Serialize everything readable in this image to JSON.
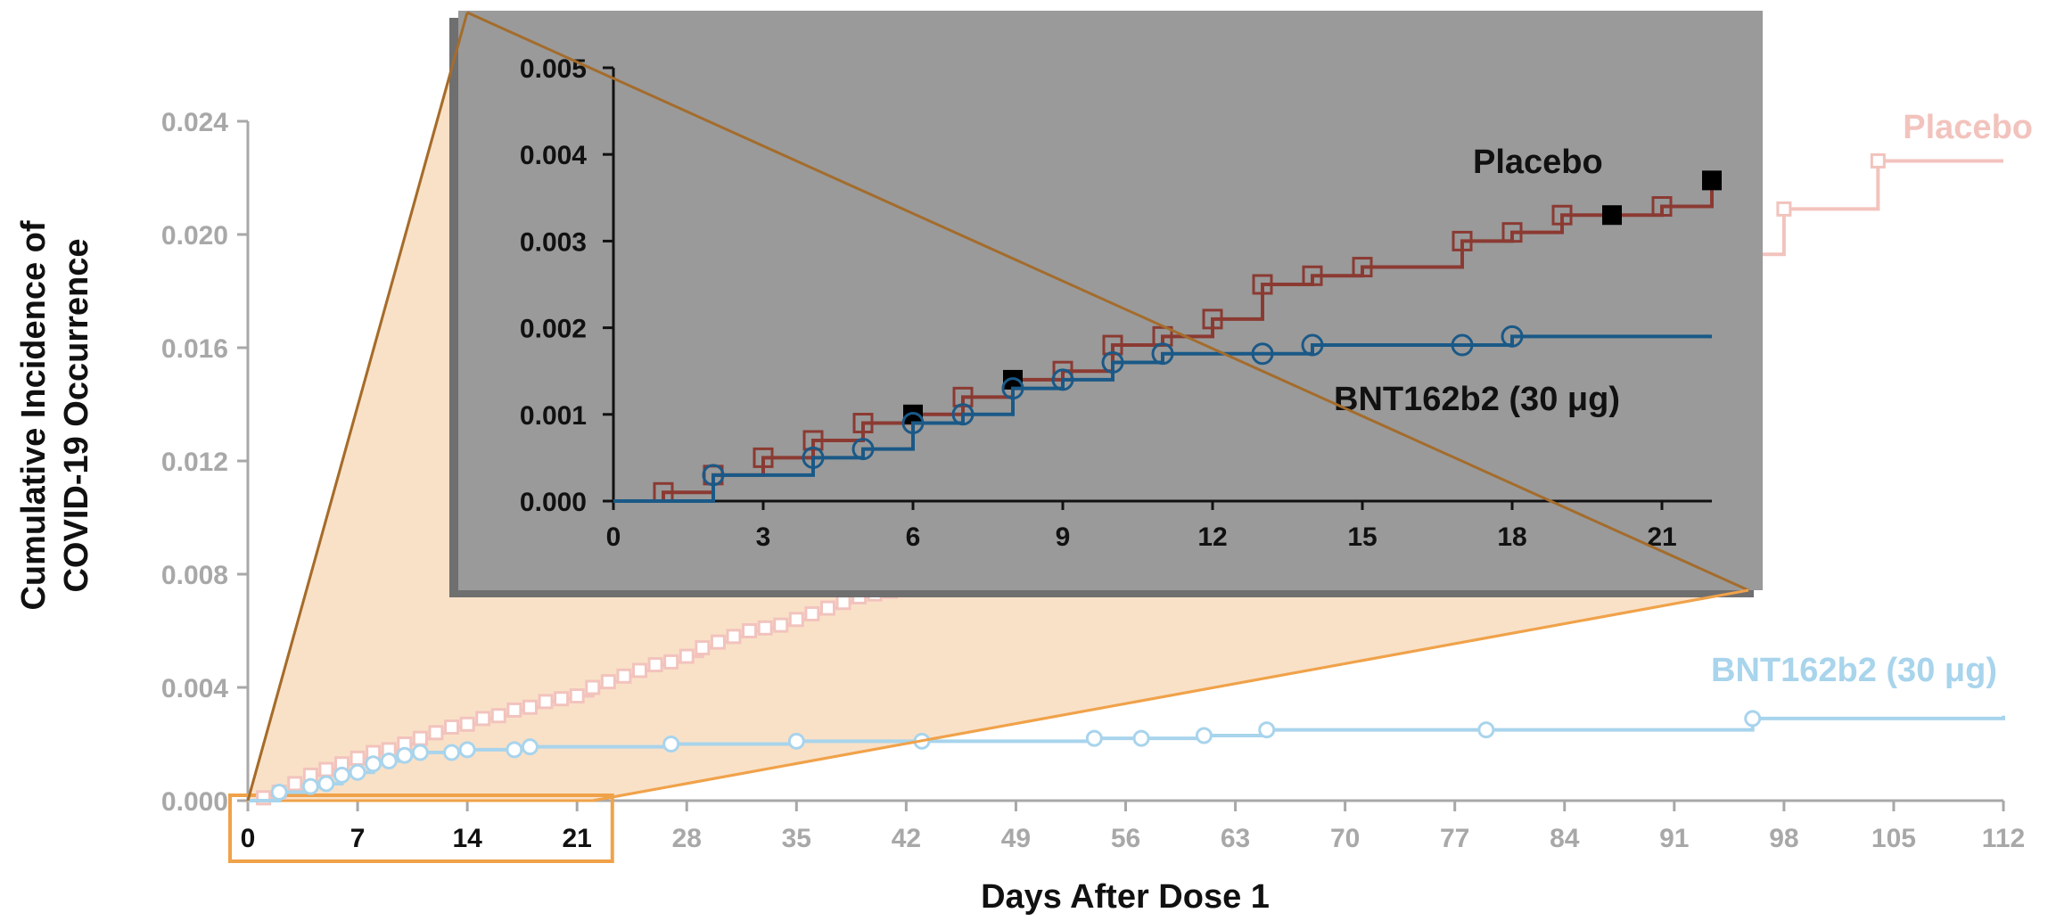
{
  "chart_data": [
    {
      "type": "line",
      "xlabel": "Days After Dose 1",
      "ylabel": "Cumulative Incidence of COVID-19 Occurrence",
      "xlim": [
        0,
        112
      ],
      "ylim": [
        0,
        0.024
      ],
      "x_ticks": [
        "0",
        "7",
        "14",
        "21",
        "28",
        "35",
        "42",
        "49",
        "56",
        "63",
        "70",
        "77",
        "84",
        "91",
        "98",
        "105",
        "112"
      ],
      "y_ticks": [
        "0.000",
        "0.004",
        "0.008",
        "0.012",
        "0.016",
        "0.020",
        "0.024"
      ],
      "highlighted_x_range": [
        0,
        22
      ],
      "series": [
        {
          "name": "Placebo",
          "color": "#f2c3bd",
          "marker": "open-square",
          "x": [
            0,
            1,
            2,
            3,
            4,
            5,
            6,
            7,
            8,
            9,
            10,
            11,
            12,
            13,
            14,
            15,
            16,
            17,
            18,
            19,
            20,
            21,
            22,
            23,
            24,
            25,
            26,
            27,
            28,
            29,
            30,
            31,
            32,
            33,
            34,
            35,
            36,
            37,
            38,
            39,
            40,
            41,
            42,
            96,
            98,
            104,
            112
          ],
          "values": [
            0.0,
            0.0001,
            0.0003,
            0.0006,
            0.0009,
            0.0011,
            0.0013,
            0.0015,
            0.0017,
            0.0018,
            0.002,
            0.0022,
            0.0024,
            0.0026,
            0.0027,
            0.0029,
            0.003,
            0.0032,
            0.0033,
            0.0035,
            0.0036,
            0.0037,
            0.004,
            0.0042,
            0.0044,
            0.0046,
            0.0048,
            0.0049,
            0.0051,
            0.0054,
            0.0056,
            0.0058,
            0.006,
            0.0061,
            0.0062,
            0.0064,
            0.0066,
            0.0068,
            0.007,
            0.0072,
            0.0073,
            0.0074,
            0.0075,
            0.0193,
            0.0209,
            0.0226,
            0.0226
          ]
        },
        {
          "name": "BNT162b2 (30 μg)",
          "color": "#a8d4ec",
          "marker": "open-circle",
          "x": [
            0,
            2,
            4,
            5,
            6,
            7,
            8,
            9,
            10,
            11,
            13,
            14,
            17,
            18,
            27,
            35,
            43,
            54,
            57,
            61,
            65,
            79,
            96,
            112
          ],
          "values": [
            0.0,
            0.0003,
            0.0005,
            0.0006,
            0.0009,
            0.001,
            0.0013,
            0.0014,
            0.0016,
            0.0017,
            0.0017,
            0.0018,
            0.0018,
            0.0019,
            0.002,
            0.0021,
            0.0021,
            0.0022,
            0.0022,
            0.0023,
            0.0025,
            0.0025,
            0.0029,
            0.003
          ]
        }
      ]
    },
    {
      "type": "line",
      "xlim": [
        0,
        22
      ],
      "ylim": [
        0,
        0.005
      ],
      "x_ticks": [
        "0",
        "3",
        "6",
        "9",
        "12",
        "15",
        "18",
        "21"
      ],
      "y_ticks": [
        "0.000",
        "0.001",
        "0.002",
        "0.003",
        "0.004",
        "0.005"
      ],
      "series": [
        {
          "name": "Placebo",
          "color": "#8b3a32",
          "marker": "open-square",
          "x": [
            0,
            1,
            2,
            3,
            4,
            5,
            6,
            7,
            8,
            9,
            10,
            11,
            12,
            13,
            14,
            15,
            17,
            18,
            19,
            20,
            21,
            22
          ],
          "values": [
            0.0,
            0.0001,
            0.0003,
            0.0005,
            0.0007,
            0.0009,
            0.001,
            0.0012,
            0.0014,
            0.0015,
            0.0018,
            0.0019,
            0.0021,
            0.0025,
            0.0026,
            0.0027,
            0.003,
            0.0031,
            0.0033,
            0.0033,
            0.0034,
            0.0037
          ],
          "filled_markers_x": [
            6,
            8,
            20,
            22
          ]
        },
        {
          "name": "BNT162b2 (30 μg)",
          "color": "#1a5987",
          "marker": "open-circle",
          "x": [
            0,
            2,
            4,
            5,
            6,
            7,
            8,
            9,
            10,
            11,
            13,
            14,
            17,
            18,
            22
          ],
          "values": [
            0.0,
            0.0003,
            0.0005,
            0.0006,
            0.0009,
            0.001,
            0.0013,
            0.0014,
            0.0016,
            0.0017,
            0.0017,
            0.0018,
            0.0018,
            0.0019,
            0.0019
          ]
        }
      ]
    }
  ],
  "ui": {
    "frame_color": "#f0a24a",
    "band_fill": "#f9e1c8",
    "zoom_line_color": "#a46c2c",
    "inset_bg": "#9a9a9a",
    "inset_shadow": "#6f6f6f",
    "axis_gray": "#a8a8a8",
    "inset_axis": "#111111"
  }
}
